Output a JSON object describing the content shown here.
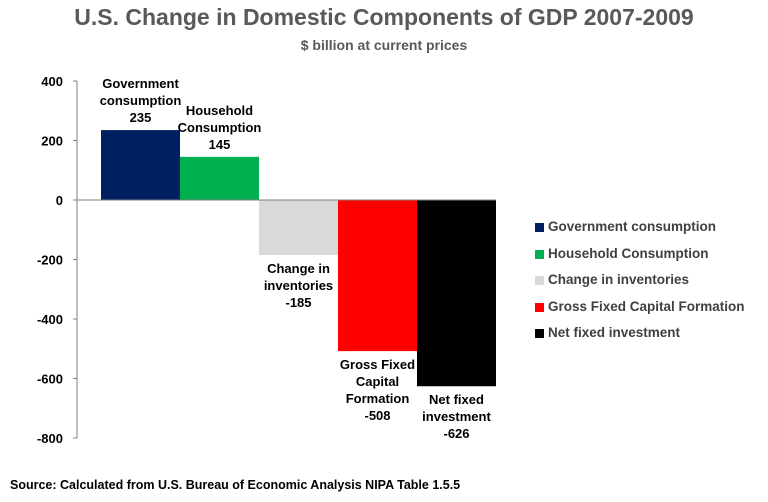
{
  "chart_data": {
    "type": "bar",
    "title": "U.S. Change in Domestic Components of GDP 2007-2009",
    "subtitle": "$ billion at current prices",
    "categories": [
      "Government consumption",
      "Household Consumption",
      "Change in inventories",
      "Gross Fixed Capital Formation",
      "Net fixed investment"
    ],
    "values": [
      235,
      145,
      -185,
      -508,
      -626
    ],
    "colors": [
      "#002060",
      "#00B050",
      "#D9D9D9",
      "#FF0000",
      "#000000"
    ],
    "data_labels": [
      [
        "Government",
        "consumption",
        "235"
      ],
      [
        "Household",
        "Consumption",
        "145"
      ],
      [
        "Change in",
        "inventories",
        "-185"
      ],
      [
        "Gross Fixed",
        "Capital",
        "Formation",
        "-508"
      ],
      [
        "Net fixed",
        "investment",
        "-626"
      ]
    ],
    "yticks": [
      "400",
      "200",
      "0",
      "-200",
      "-400",
      "-600",
      "-800"
    ],
    "ylim": [
      -800,
      400
    ],
    "grid": false,
    "legend_position": "right"
  },
  "source": "Source: Calculated from U.S. Bureau of Economic Analysis NIPA Table 1.5.5"
}
